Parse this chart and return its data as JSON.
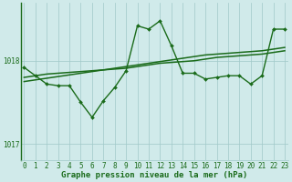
{
  "hours": [
    0,
    1,
    2,
    3,
    4,
    5,
    6,
    7,
    8,
    9,
    10,
    11,
    12,
    13,
    14,
    15,
    16,
    17,
    18,
    19,
    20,
    21,
    22,
    23
  ],
  "pressure_main": [
    1017.92,
    1017.82,
    1017.72,
    1017.7,
    1017.7,
    1017.5,
    1017.32,
    1017.52,
    1017.68,
    1017.88,
    1018.42,
    1018.38,
    1018.48,
    1018.18,
    1017.85,
    1017.85,
    1017.78,
    1017.8,
    1017.82,
    1017.82,
    1017.72,
    1017.82,
    1018.38,
    1018.38
  ],
  "pressure_trend1": [
    1017.8,
    1017.82,
    1017.84,
    1017.85,
    1017.86,
    1017.87,
    1017.88,
    1017.89,
    1017.9,
    1017.91,
    1017.93,
    1017.95,
    1017.97,
    1017.98,
    1017.99,
    1018.0,
    1018.02,
    1018.04,
    1018.05,
    1018.06,
    1018.07,
    1018.08,
    1018.1,
    1018.12
  ],
  "pressure_trend2": [
    1017.75,
    1017.77,
    1017.79,
    1017.81,
    1017.83,
    1017.85,
    1017.87,
    1017.89,
    1017.91,
    1017.93,
    1017.95,
    1017.97,
    1017.99,
    1018.01,
    1018.03,
    1018.05,
    1018.07,
    1018.08,
    1018.09,
    1018.1,
    1018.11,
    1018.12,
    1018.14,
    1018.16
  ],
  "bg_color": "#d0eaea",
  "grid_color": "#a0c8c8",
  "line_color": "#1a6b1a",
  "ylabel_ticks": [
    1017,
    1018
  ],
  "ylim": [
    1016.8,
    1018.7
  ],
  "xlabel": "Graphe pression niveau de la mer (hPa)",
  "xlabel_fontsize": 6.5,
  "tick_fontsize": 5.5,
  "line_width": 1.0,
  "marker": "D",
  "marker_size": 2.0
}
